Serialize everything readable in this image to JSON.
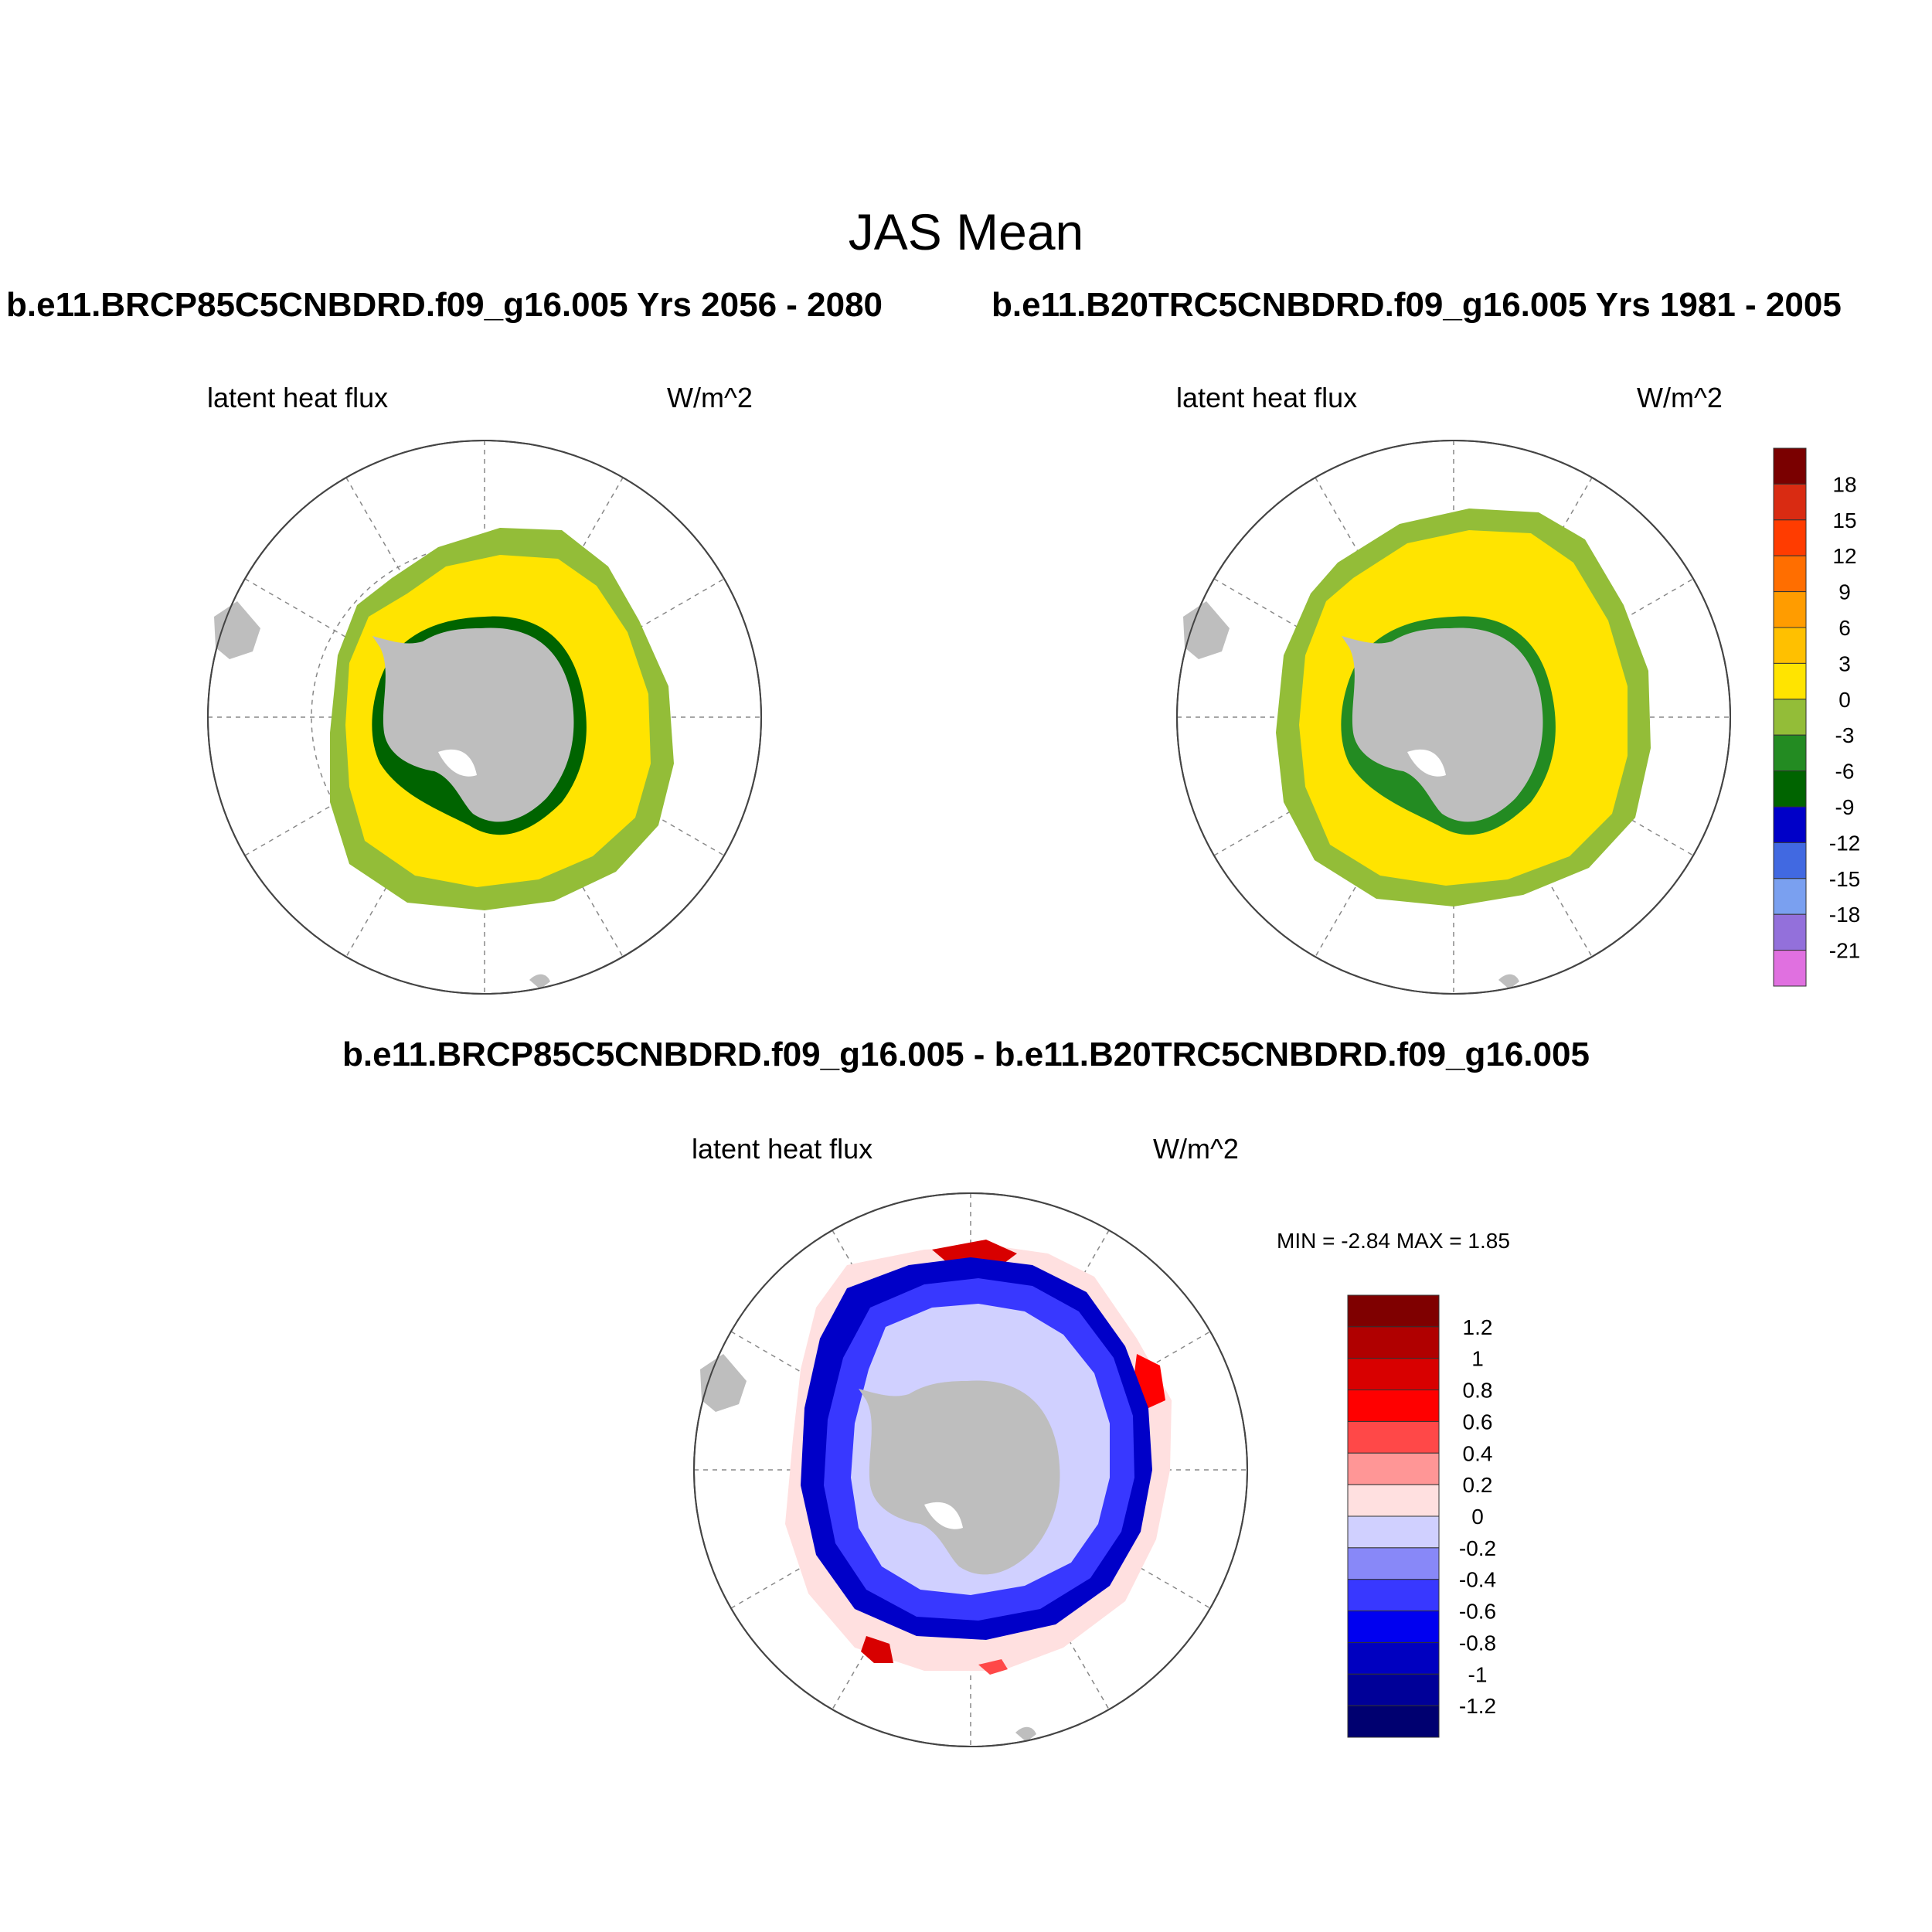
{
  "main_title": "JAS Mean",
  "case_titles": {
    "left": "b.e11.BRCP85C5CNBDRD.f09_g16.005  Yrs 2056 - 2080",
    "right": "b.e11.B20TRC5CNBDRD.f09_g16.005  Yrs 1981 - 2005"
  },
  "diff_title": "b.e11.BRCP85C5CNBDRD.f09_g16.005 - b.e11.B20TRC5CNBDRD.f09_g16.005",
  "panels": [
    {
      "variable": "latent heat flux",
      "units": "W/m^2"
    },
    {
      "variable": "latent heat flux",
      "units": "W/m^2"
    },
    {
      "variable": "latent heat flux",
      "units": "W/m^2",
      "min_max": "MIN =  -2.84 MAX =   1.85"
    }
  ],
  "colorbar_top": {
    "labels": [
      "18",
      "15",
      "12",
      "9",
      "6",
      "3",
      "0",
      "-3",
      "-6",
      "-9",
      "-12",
      "-15",
      "-18",
      "-21"
    ],
    "colors": [
      "#7a0000",
      "#d92b12",
      "#ff3c00",
      "#ff6e00",
      "#ff9c00",
      "#ffc000",
      "#ffe400",
      "#93bd38",
      "#238b22",
      "#006400",
      "#0000c8",
      "#4169e1",
      "#7aa0f0",
      "#9370db",
      "#e070e0"
    ]
  },
  "colorbar_diff": {
    "labels": [
      "1.2",
      "1",
      "0.8",
      "0.6",
      "0.4",
      "0.2",
      "0",
      "-0.2",
      "-0.4",
      "-0.6",
      "-0.8",
      "-1",
      "-1.2"
    ],
    "colors": [
      "#7f0000",
      "#b00000",
      "#d80000",
      "#ff0000",
      "#ff4848",
      "#ff9696",
      "#ffe0e0",
      "#d0d0ff",
      "#8888f8",
      "#3838ff",
      "#0000f0",
      "#0000c0",
      "#000098",
      "#000070"
    ]
  }
}
